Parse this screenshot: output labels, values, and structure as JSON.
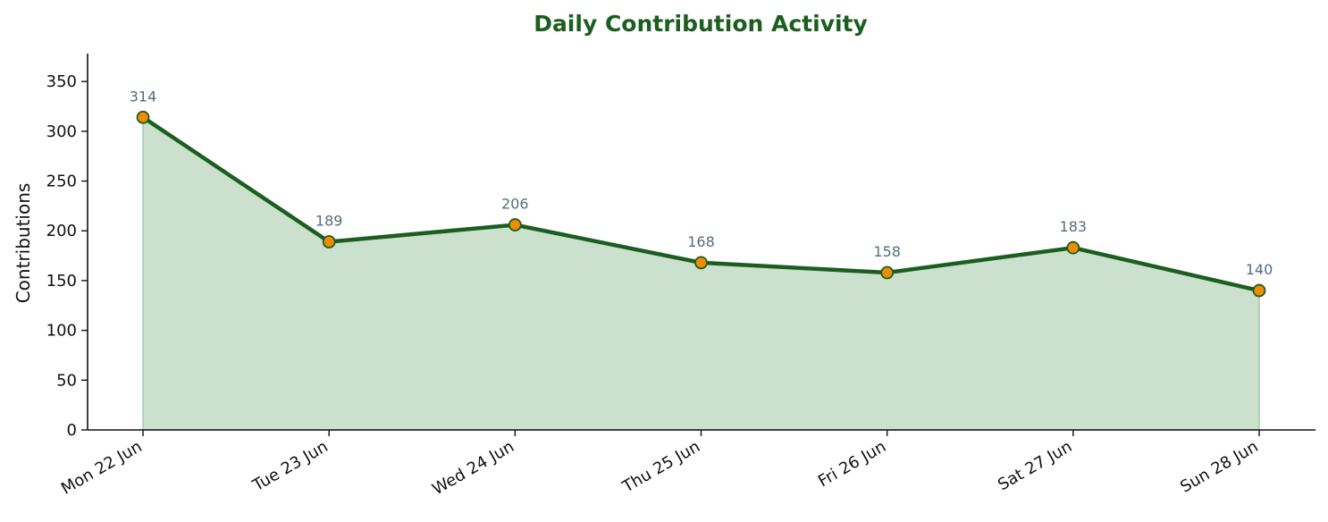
{
  "chart_data": {
    "type": "area",
    "title": "Daily Contribution Activity",
    "xlabel": "",
    "ylabel": "Contributions",
    "categories": [
      "Mon 22 Jun",
      "Tue 23 Jun",
      "Wed 24 Jun",
      "Thu 25 Jun",
      "Fri 26 Jun",
      "Sat 27 Jun",
      "Sun 28 Jun"
    ],
    "series": [
      {
        "values": [
          314,
          189,
          206,
          168,
          158,
          183,
          140
        ]
      }
    ],
    "data_labels": [
      "314",
      "189",
      "206",
      "168",
      "158",
      "183",
      "140"
    ],
    "ylim": [
      0,
      378
    ],
    "yticks": [
      0,
      50,
      100,
      150,
      200,
      250,
      300,
      350
    ],
    "ytick_labels": [
      "0",
      "50",
      "100",
      "150",
      "200",
      "250",
      "300",
      "350"
    ],
    "grid": false,
    "legend": "none",
    "colors": {
      "title": "#1b5e20",
      "line": "#1b5e20",
      "fill": "#a5cba8",
      "marker_fill": "#f08c00",
      "marker_edge": "#1b5e20",
      "data_label": "#546e7a",
      "axis": "#111111"
    }
  }
}
